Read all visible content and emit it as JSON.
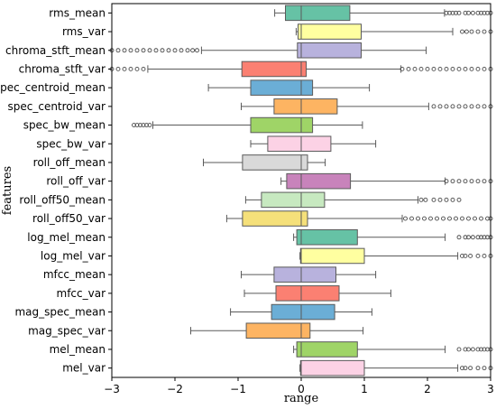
{
  "chart_data": {
    "type": "box",
    "orientation": "horizontal",
    "title": "",
    "xlabel": "range",
    "ylabel": "features",
    "xlim": [
      -3,
      3
    ],
    "xticks": [
      -3,
      -2,
      -1,
      0,
      1,
      2,
      3
    ],
    "xtick_labels": [
      "−3",
      "−2",
      "−1",
      "0",
      "1",
      "2",
      "3"
    ],
    "grid": false,
    "outlier_marker": "open circle",
    "boxes": [
      {
        "feature": "rms_mean",
        "color": "#66c2a5",
        "whisker_low": -0.42,
        "q1": -0.25,
        "median": 0.0,
        "q3": 0.77,
        "whisker_high": 2.27,
        "outliers": [
          2.3,
          2.35,
          2.4,
          2.45,
          2.5,
          2.6,
          2.65,
          2.72,
          2.8,
          2.85,
          2.9,
          2.95,
          3.0
        ]
      },
      {
        "feature": "rms_var",
        "color": "#ffffa0",
        "whisker_low": -0.08,
        "q1": -0.05,
        "median": 0.0,
        "q3": 0.95,
        "whisker_high": 2.4,
        "outliers": [
          2.55,
          2.62,
          2.7,
          2.8,
          2.9,
          3.0
        ]
      },
      {
        "feature": "chroma_stft_mean",
        "color": "#b8b2dd",
        "whisker_low": -1.58,
        "q1": -0.06,
        "median": 0.0,
        "q3": 0.95,
        "whisker_high": 1.98,
        "outliers": [
          -3.0,
          -2.9,
          -2.8,
          -2.7,
          -2.6,
          -2.5,
          -2.4,
          -2.3,
          -2.2,
          -2.1,
          -2.0,
          -1.9,
          -1.8,
          -1.72,
          -1.65
        ]
      },
      {
        "feature": "chroma_stft_var",
        "color": "#fb8072",
        "whisker_low": -2.43,
        "q1": -0.94,
        "median": 0.0,
        "q3": 0.08,
        "whisker_high": 1.58,
        "outliers": [
          -3.0,
          -2.9,
          -2.8,
          -2.7,
          -2.6,
          -2.5,
          1.6,
          1.7,
          1.8,
          1.9,
          2.0,
          2.1,
          2.2,
          2.3,
          2.4,
          2.5,
          2.6,
          2.7,
          2.8,
          2.9,
          3.0
        ]
      },
      {
        "feature": "spec_centroid_mean",
        "color": "#6baed6",
        "whisker_low": -1.47,
        "q1": -0.8,
        "median": 0.0,
        "q3": 0.18,
        "whisker_high": 1.08,
        "outliers": []
      },
      {
        "feature": "spec_centroid_var",
        "color": "#fdb462",
        "whisker_low": -0.95,
        "q1": -0.43,
        "median": 0.0,
        "q3": 0.57,
        "whisker_high": 2.02,
        "outliers": [
          2.1,
          2.2,
          2.3,
          2.4,
          2.5,
          2.6,
          2.7,
          2.8,
          2.9,
          3.0
        ]
      },
      {
        "feature": "spec_bw_mean",
        "color": "#9fd467",
        "whisker_low": -2.35,
        "q1": -0.8,
        "median": 0.0,
        "q3": 0.18,
        "whisker_high": 0.97,
        "outliers": [
          -2.65,
          -2.6,
          -2.55,
          -2.5,
          -2.45,
          -2.4
        ]
      },
      {
        "feature": "spec_bw_var",
        "color": "#fcd2e5",
        "whisker_low": -0.8,
        "q1": -0.53,
        "median": 0.0,
        "q3": 0.47,
        "whisker_high": 1.18,
        "outliers": []
      },
      {
        "feature": "roll_off_mean",
        "color": "#d9d9d9",
        "whisker_low": -1.55,
        "q1": -0.93,
        "median": 0.0,
        "q3": 0.1,
        "whisker_high": 0.38,
        "outliers": []
      },
      {
        "feature": "roll_off_var",
        "color": "#c883bb",
        "whisker_low": -0.32,
        "q1": -0.23,
        "median": 0.0,
        "q3": 0.78,
        "whisker_high": 2.28,
        "outliers": [
          2.3,
          2.4,
          2.5,
          2.6,
          2.7,
          2.8,
          2.9,
          3.0
        ]
      },
      {
        "feature": "roll_off50_mean",
        "color": "#c7e9c0",
        "whisker_low": -0.88,
        "q1": -0.63,
        "median": 0.0,
        "q3": 0.37,
        "whisker_high": 1.85,
        "outliers": [
          1.9,
          1.97,
          2.1,
          2.2,
          2.3,
          2.4,
          2.5
        ]
      },
      {
        "feature": "roll_off50_var",
        "color": "#f5e07a",
        "whisker_low": -1.18,
        "q1": -0.93,
        "median": 0.0,
        "q3": 0.1,
        "whisker_high": 1.6,
        "outliers": [
          1.65,
          1.75,
          1.85,
          1.95,
          2.05,
          2.15,
          2.25,
          2.35,
          2.45,
          2.55,
          2.65,
          2.75,
          2.85,
          2.95,
          3.0
        ]
      },
      {
        "feature": "log_mel_mean",
        "color": "#66c2a5",
        "whisker_low": -0.12,
        "q1": -0.07,
        "median": 0.0,
        "q3": 0.89,
        "whisker_high": 2.28,
        "outliers": [
          2.5,
          2.6,
          2.65,
          2.72,
          2.8,
          2.85,
          2.9,
          2.95,
          3.0
        ]
      },
      {
        "feature": "log_mel_var",
        "color": "#ffffa0",
        "whisker_low": -0.02,
        "q1": -0.01,
        "median": 0.0,
        "q3": 1.0,
        "whisker_high": 2.48,
        "outliers": [
          2.55,
          2.6,
          2.68,
          2.8,
          2.9,
          3.0
        ]
      },
      {
        "feature": "mfcc_mean",
        "color": "#b8b2dd",
        "whisker_low": -0.95,
        "q1": -0.43,
        "median": 0.0,
        "q3": 0.55,
        "whisker_high": 1.18,
        "outliers": []
      },
      {
        "feature": "mfcc_var",
        "color": "#fb8072",
        "whisker_low": -0.9,
        "q1": -0.4,
        "median": 0.0,
        "q3": 0.6,
        "whisker_high": 1.42,
        "outliers": []
      },
      {
        "feature": "mag_spec_mean",
        "color": "#6baed6",
        "whisker_low": -1.12,
        "q1": -0.47,
        "median": 0.0,
        "q3": 0.53,
        "whisker_high": 1.12,
        "outliers": []
      },
      {
        "feature": "mag_spec_var",
        "color": "#fdb462",
        "whisker_low": -1.75,
        "q1": -0.87,
        "median": 0.0,
        "q3": 0.14,
        "whisker_high": 0.98,
        "outliers": []
      },
      {
        "feature": "mel_mean",
        "color": "#9fd467",
        "whisker_low": -0.12,
        "q1": -0.07,
        "median": 0.0,
        "q3": 0.89,
        "whisker_high": 2.28,
        "outliers": [
          2.5,
          2.6,
          2.65,
          2.72,
          2.8,
          2.85,
          2.9,
          2.95,
          3.0
        ]
      },
      {
        "feature": "mel_var",
        "color": "#fcd2e5",
        "whisker_low": -0.02,
        "q1": -0.01,
        "median": 0.0,
        "q3": 1.0,
        "whisker_high": 2.48,
        "outliers": [
          2.55,
          2.6,
          2.68,
          2.8,
          2.9,
          3.0
        ]
      }
    ]
  }
}
